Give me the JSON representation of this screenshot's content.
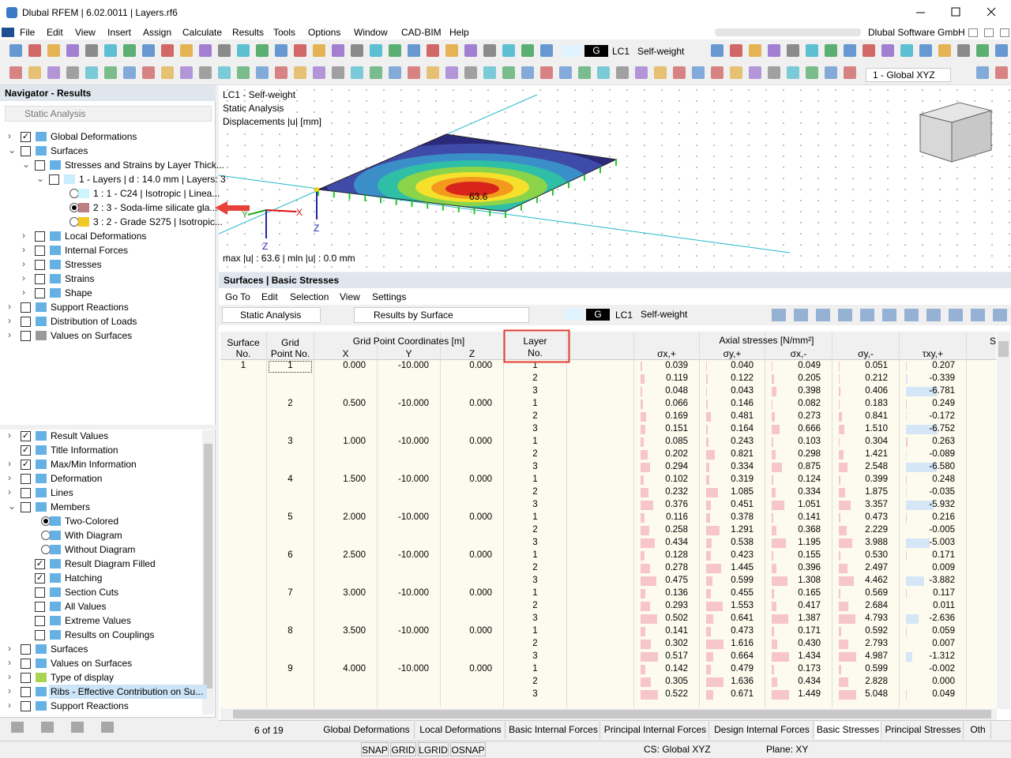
{
  "title_bar": {
    "title": "Dlubal RFEM | 6.02.0011 | Layers.rf6"
  },
  "menu": {
    "items": [
      "File",
      "Edit",
      "View",
      "Insert",
      "Assign",
      "Calculate",
      "Results",
      "Tools",
      "Options",
      "Window",
      "CAD-BIM",
      "Help"
    ],
    "company": "Dlubal Software GmbH"
  },
  "toolbar": {
    "load_case_type": "G",
    "load_case": "LC1",
    "load_case_name": "Self-weight",
    "coordinate_system": "1 - Global XYZ"
  },
  "navigator": {
    "title": "Navigator - Results",
    "analysis": "Static Analysis",
    "results_tree": [
      "Global Deformations",
      "Surfaces",
      "Stresses and Strains by Layer Thick...",
      "1 - Layers | d : 14.0 mm | Layers: 3",
      "1 : 1 - C24 | Isotropic | Linea...",
      "2 : 3 - Soda-lime silicate gla...",
      "3 : 2 - Grade S275 | Isotropic...",
      "Local Deformations",
      "Internal Forces",
      "Stresses",
      "Strains",
      "Shape",
      "Support Reactions",
      "Distribution of Loads",
      "Values on Surfaces"
    ],
    "display_tree": [
      "Result Values",
      "Title Information",
      "Max/Min Information",
      "Deformation",
      "Lines",
      "Members",
      "Two-Colored",
      "With Diagram",
      "Without Diagram",
      "Result Diagram Filled",
      "Hatching",
      "Section Cuts",
      "All Values",
      "Extreme Values",
      "Results on Couplings",
      "Surfaces",
      "Values on Surfaces",
      "Type of display",
      "Ribs - Effective Contribution on Su...",
      "Support Reactions"
    ]
  },
  "viewport": {
    "info": [
      "LC1 - Self-weight",
      "Static Analysis",
      "Displacements |u| [mm]"
    ],
    "max_label": "63.6",
    "summary": "max |u| : 63.6 | min |u| : 0.0 mm",
    "axis_labels": [
      "X",
      "Y",
      "Z",
      "Z"
    ]
  },
  "panel": {
    "title": "Surfaces | Basic Stresses",
    "menu": [
      "Go To",
      "Edit",
      "Selection",
      "View",
      "Settings"
    ],
    "analysis": "Static Analysis",
    "result_type": "Results by Surface",
    "load_case_type": "G",
    "load_case": "LC1",
    "load_case_name": "Self-weight"
  },
  "table": {
    "headers": {
      "surface": [
        "Surface",
        "No."
      ],
      "grid_point": [
        "Grid",
        "Point No."
      ],
      "coordinates": "Grid Point Coordinates [m]",
      "coords": [
        "X",
        "Y",
        "Z"
      ],
      "layer": [
        "Layer",
        "No."
      ],
      "axial": "Axial stresses [N/mm²]",
      "stresses": [
        "σx,+",
        "σy,+",
        "σx,-",
        "σy,-",
        "τxy,+"
      ],
      "next": "S"
    },
    "rows": [
      [
        "1",
        "1",
        "0.000",
        "-10.000",
        "0.000",
        "1",
        "0.039",
        "0.040",
        "0.049",
        "0.051",
        "0.207"
      ],
      [
        null,
        null,
        null,
        null,
        null,
        "2",
        "0.119",
        "0.122",
        "0.205",
        "0.212",
        "-0.339"
      ],
      [
        null,
        null,
        null,
        null,
        null,
        "3",
        "0.048",
        "0.043",
        "0.398",
        "0.406",
        "-6.781"
      ],
      [
        null,
        "2",
        "0.500",
        "-10.000",
        "0.000",
        "1",
        "0.066",
        "0.146",
        "0.082",
        "0.183",
        "0.249"
      ],
      [
        null,
        null,
        null,
        null,
        null,
        "2",
        "0.169",
        "0.481",
        "0.273",
        "0.841",
        "-0.172"
      ],
      [
        null,
        null,
        null,
        null,
        null,
        "3",
        "0.151",
        "0.164",
        "0.666",
        "1.510",
        "-6.752"
      ],
      [
        null,
        "3",
        "1.000",
        "-10.000",
        "0.000",
        "1",
        "0.085",
        "0.243",
        "0.103",
        "0.304",
        "0.263"
      ],
      [
        null,
        null,
        null,
        null,
        null,
        "2",
        "0.202",
        "0.821",
        "0.298",
        "1.421",
        "-0.089"
      ],
      [
        null,
        null,
        null,
        null,
        null,
        "3",
        "0.294",
        "0.334",
        "0.875",
        "2.548",
        "-6.580"
      ],
      [
        null,
        "4",
        "1.500",
        "-10.000",
        "0.000",
        "1",
        "0.102",
        "0.319",
        "0.124",
        "0.399",
        "0.248"
      ],
      [
        null,
        null,
        null,
        null,
        null,
        "2",
        "0.232",
        "1.085",
        "0.334",
        "1.875",
        "-0.035"
      ],
      [
        null,
        null,
        null,
        null,
        null,
        "3",
        "0.376",
        "0.451",
        "1.051",
        "3.357",
        "-5.932"
      ],
      [
        null,
        "5",
        "2.000",
        "-10.000",
        "0.000",
        "1",
        "0.116",
        "0.378",
        "0.141",
        "0.473",
        "0.216"
      ],
      [
        null,
        null,
        null,
        null,
        null,
        "2",
        "0.258",
        "1.291",
        "0.368",
        "2.229",
        "-0.005"
      ],
      [
        null,
        null,
        null,
        null,
        null,
        "3",
        "0.434",
        "0.538",
        "1.195",
        "3.988",
        "-5.003"
      ],
      [
        null,
        "6",
        "2.500",
        "-10.000",
        "0.000",
        "1",
        "0.128",
        "0.423",
        "0.155",
        "0.530",
        "0.171"
      ],
      [
        null,
        null,
        null,
        null,
        null,
        "2",
        "0.278",
        "1.445",
        "0.396",
        "2.497",
        "0.009"
      ],
      [
        null,
        null,
        null,
        null,
        null,
        "3",
        "0.475",
        "0.599",
        "1.308",
        "4.462",
        "-3.882"
      ],
      [
        null,
        "7",
        "3.000",
        "-10.000",
        "0.000",
        "1",
        "0.136",
        "0.455",
        "0.165",
        "0.569",
        "0.117"
      ],
      [
        null,
        null,
        null,
        null,
        null,
        "2",
        "0.293",
        "1.553",
        "0.417",
        "2.684",
        "0.011"
      ],
      [
        null,
        null,
        null,
        null,
        null,
        "3",
        "0.502",
        "0.641",
        "1.387",
        "4.793",
        "-2.636"
      ],
      [
        null,
        "8",
        "3.500",
        "-10.000",
        "0.000",
        "1",
        "0.141",
        "0.473",
        "0.171",
        "0.592",
        "0.059"
      ],
      [
        null,
        null,
        null,
        null,
        null,
        "2",
        "0.302",
        "1.616",
        "0.430",
        "2.793",
        "0.007"
      ],
      [
        null,
        null,
        null,
        null,
        null,
        "3",
        "0.517",
        "0.664",
        "1.434",
        "4.987",
        "-1.312"
      ],
      [
        null,
        "9",
        "4.000",
        "-10.000",
        "0.000",
        "1",
        "0.142",
        "0.479",
        "0.173",
        "0.599",
        "-0.002"
      ],
      [
        null,
        null,
        null,
        null,
        null,
        "2",
        "0.305",
        "1.636",
        "0.434",
        "2.828",
        "0.000"
      ],
      [
        null,
        null,
        null,
        null,
        null,
        "3",
        "0.522",
        "0.671",
        "1.449",
        "5.048",
        "0.049"
      ]
    ]
  },
  "tabs": {
    "pager": "6 of 19",
    "items": [
      "Global Deformations",
      "Local Deformations",
      "Basic Internal Forces",
      "Principal Internal Forces",
      "Design Internal Forces",
      "Basic Stresses",
      "Principal Stresses",
      "Oth"
    ]
  },
  "status": {
    "toggles": [
      "SNAP",
      "GRID",
      "LGRID",
      "OSNAP"
    ],
    "cs": "CS: Global XYZ",
    "plane": "Plane: XY"
  }
}
